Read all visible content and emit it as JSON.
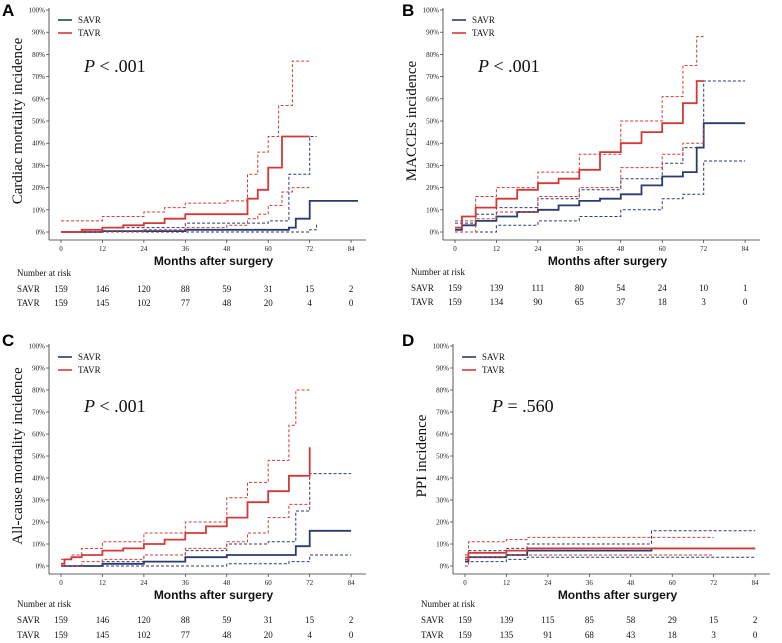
{
  "colors": {
    "savr": "#2c3a6e",
    "tavr": "#d23a3a"
  },
  "legend": {
    "savr": "SAVR",
    "tavr": "TAVR"
  },
  "risk_table_title": "Number at risk",
  "chart_data": [
    {
      "panel": "A",
      "type": "line",
      "title": "",
      "xlabel": "Months after surgery",
      "ylabel": "Cardiac mortality incidence",
      "p_prefix": "P",
      "p_value": "< .001",
      "xlim": [
        0,
        86
      ],
      "ylim": [
        0,
        1
      ],
      "x_ticks": [
        "0",
        "12",
        "24",
        "36",
        "48",
        "60",
        "72",
        "84"
      ],
      "y_ticks": [
        "0%",
        "10%",
        "20%",
        "30%",
        "40%",
        "50%",
        "60%",
        "70%",
        "80%",
        "90%",
        "100%"
      ],
      "series": [
        {
          "name": "SAVR",
          "x": [
            0,
            12,
            36,
            66,
            68,
            72,
            86
          ],
          "y": [
            0,
            0.004,
            0.01,
            0.02,
            0.06,
            0.14,
            0.14
          ],
          "lower": {
            "x": [
              0,
              24,
              66,
              72,
              74
            ],
            "y": [
              0,
              0,
              0,
              0.01,
              0.04
            ]
          },
          "upper": {
            "x": [
              0,
              12,
              36,
              60,
              66,
              72,
              74
            ],
            "y": [
              0,
              0.02,
              0.04,
              0.05,
              0.26,
              0.43,
              0.43
            ]
          }
        },
        {
          "name": "TAVR",
          "x": [
            0,
            6,
            12,
            18,
            24,
            30,
            36,
            48,
            54,
            57,
            60,
            64,
            67,
            72
          ],
          "y": [
            0,
            0.01,
            0.02,
            0.03,
            0.04,
            0.06,
            0.08,
            0.08,
            0.15,
            0.19,
            0.29,
            0.43,
            0.43,
            0.43
          ],
          "lower": {
            "x": [
              0,
              12,
              24,
              36,
              48,
              54,
              57,
              60,
              64,
              67,
              72
            ],
            "y": [
              0,
              0,
              0.01,
              0.02,
              0.03,
              0.06,
              0.08,
              0.12,
              0.18,
              0.2,
              0.2
            ],
            "_": ""
          },
          "upper": {
            "x": [
              0,
              6,
              12,
              24,
              30,
              36,
              48,
              54,
              57,
              60,
              63,
              67,
              72
            ],
            "y": [
              0.05,
              0.05,
              0.07,
              0.09,
              0.11,
              0.13,
              0.14,
              0.26,
              0.36,
              0.43,
              0.57,
              0.77,
              0.77
            ]
          }
        }
      ],
      "risk": {
        "savr": [
          "159",
          "146",
          "120",
          "88",
          "59",
          "31",
          "15",
          "2"
        ],
        "tavr": [
          "159",
          "145",
          "102",
          "77",
          "48",
          "20",
          "4",
          "0"
        ]
      }
    },
    {
      "panel": "B",
      "type": "line",
      "title": "",
      "xlabel": "Months after surgery",
      "ylabel": "MACCEs incidence",
      "p_prefix": "P",
      "p_value": "< .001",
      "xlim": [
        0,
        86
      ],
      "ylim": [
        0,
        1
      ],
      "x_ticks": [
        "0",
        "12",
        "24",
        "36",
        "48",
        "60",
        "72",
        "84"
      ],
      "y_ticks": [
        "0%",
        "10%",
        "20%",
        "30%",
        "40%",
        "50%",
        "60%",
        "70%",
        "80%",
        "90%",
        "100%"
      ],
      "series": [
        {
          "name": "SAVR",
          "x": [
            0,
            2,
            6,
            12,
            18,
            24,
            30,
            36,
            42,
            48,
            54,
            60,
            66,
            70,
            72,
            84
          ],
          "y": [
            0.01,
            0.03,
            0.05,
            0.07,
            0.09,
            0.1,
            0.12,
            0.14,
            0.15,
            0.17,
            0.21,
            0.25,
            0.27,
            0.38,
            0.49,
            0.49
          ],
          "lower": {
            "x": [
              0,
              12,
              24,
              36,
              48,
              60,
              66,
              72,
              84
            ],
            "y": [
              0,
              0.03,
              0.05,
              0.07,
              0.1,
              0.15,
              0.17,
              0.32,
              0.32
            ]
          },
          "upper": {
            "x": [
              0,
              6,
              12,
              24,
              36,
              48,
              60,
              66,
              72,
              84
            ],
            "y": [
              0.04,
              0.08,
              0.11,
              0.15,
              0.19,
              0.24,
              0.31,
              0.38,
              0.68,
              0.68
            ]
          }
        },
        {
          "name": "TAVR",
          "x": [
            0,
            2,
            6,
            12,
            18,
            24,
            30,
            36,
            42,
            48,
            54,
            60,
            66,
            70,
            72
          ],
          "y": [
            0.02,
            0.07,
            0.11,
            0.15,
            0.19,
            0.22,
            0.24,
            0.28,
            0.36,
            0.4,
            0.45,
            0.49,
            0.58,
            0.68,
            0.68
          ],
          "lower": {
            "x": [
              0,
              6,
              12,
              24,
              36,
              48,
              60,
              66,
              72
            ],
            "y": [
              0,
              0.06,
              0.09,
              0.16,
              0.2,
              0.29,
              0.35,
              0.4,
              0.48
            ]
          },
          "upper": {
            "x": [
              0,
              6,
              12,
              24,
              36,
              48,
              60,
              66,
              70,
              72
            ],
            "y": [
              0.05,
              0.16,
              0.2,
              0.27,
              0.35,
              0.5,
              0.61,
              0.75,
              0.88,
              0.88
            ]
          }
        }
      ],
      "risk": {
        "savr": [
          "159",
          "139",
          "111",
          "80",
          "54",
          "24",
          "10",
          "1"
        ],
        "tavr": [
          "159",
          "134",
          "90",
          "65",
          "37",
          "18",
          "3",
          "0"
        ]
      }
    },
    {
      "panel": "C",
      "type": "line",
      "title": "",
      "xlabel": "Months after surgery",
      "ylabel": "All-cause mortality incidence",
      "p_prefix": "P",
      "p_value": "< .001",
      "xlim": [
        0,
        86
      ],
      "ylim": [
        0,
        1
      ],
      "x_ticks": [
        "0",
        "12",
        "24",
        "36",
        "48",
        "60",
        "72",
        "84"
      ],
      "y_ticks": [
        "0%",
        "10%",
        "20%",
        "30%",
        "40%",
        "50%",
        "60%",
        "70%",
        "80%",
        "90%",
        "100%"
      ],
      "series": [
        {
          "name": "SAVR",
          "x": [
            0,
            12,
            24,
            36,
            48,
            60,
            66,
            68,
            72,
            84
          ],
          "y": [
            0,
            0.01,
            0.02,
            0.04,
            0.05,
            0.05,
            0.05,
            0.09,
            0.16,
            0.16
          ],
          "lower": {
            "x": [
              0,
              24,
              48,
              66,
              72,
              84
            ],
            "y": [
              0,
              0,
              0.01,
              0.02,
              0.05,
              0.05
            ]
          },
          "upper": {
            "x": [
              0,
              12,
              24,
              36,
              48,
              60,
              66,
              68,
              72,
              84
            ],
            "y": [
              0,
              0.02,
              0.05,
              0.07,
              0.1,
              0.11,
              0.11,
              0.25,
              0.42,
              0.42
            ]
          }
        },
        {
          "name": "TAVR",
          "x": [
            0,
            1,
            3,
            6,
            12,
            18,
            24,
            30,
            36,
            42,
            48,
            54,
            60,
            66,
            72
          ],
          "y": [
            0.01,
            0.03,
            0.04,
            0.05,
            0.07,
            0.08,
            0.1,
            0.12,
            0.15,
            0.18,
            0.22,
            0.29,
            0.34,
            0.41,
            0.54
          ],
          "lower": {
            "x": [
              0,
              6,
              12,
              24,
              36,
              48,
              54,
              60,
              66,
              72
            ],
            "y": [
              0,
              0.02,
              0.03,
              0.05,
              0.08,
              0.11,
              0.15,
              0.22,
              0.28,
              0.31
            ]
          },
          "upper": {
            "x": [
              0,
              3,
              6,
              12,
              24,
              36,
              48,
              54,
              60,
              66,
              68,
              72
            ],
            "y": [
              0.03,
              0.05,
              0.08,
              0.11,
              0.15,
              0.2,
              0.31,
              0.38,
              0.48,
              0.64,
              0.8,
              0.8
            ]
          }
        }
      ],
      "risk": {
        "savr": [
          "159",
          "146",
          "120",
          "88",
          "59",
          "31",
          "15",
          "2"
        ],
        "tavr": [
          "159",
          "145",
          "102",
          "77",
          "48",
          "20",
          "4",
          "0"
        ]
      }
    },
    {
      "panel": "D",
      "type": "line",
      "title": "",
      "xlabel": "Months after surgery",
      "ylabel": "PPI incidence",
      "p_prefix": "P",
      "p_value": "= .560",
      "xlim": [
        0,
        86
      ],
      "ylim": [
        0,
        1
      ],
      "x_ticks": [
        "0",
        "12",
        "24",
        "36",
        "48",
        "60",
        "72",
        "84"
      ],
      "y_ticks": [
        "0%",
        "10%",
        "20%",
        "30%",
        "40%",
        "50%",
        "60%",
        "70%",
        "80%",
        "90%",
        "100%"
      ],
      "series": [
        {
          "name": "SAVR",
          "x": [
            0,
            1,
            6,
            12,
            18,
            54,
            72,
            84
          ],
          "y": [
            0.02,
            0.04,
            0.04,
            0.05,
            0.07,
            0.08,
            0.08,
            0.08
          ],
          "lower": {
            "x": [
              0,
              1,
              12,
              18,
              54,
              84
            ],
            "y": [
              0,
              0.02,
              0.03,
              0.04,
              0.04,
              0.04
            ]
          },
          "upper": {
            "x": [
              0,
              1,
              12,
              18,
              54,
              84
            ],
            "y": [
              0.04,
              0.07,
              0.08,
              0.1,
              0.16,
              0.16
            ]
          }
        },
        {
          "name": "TAVR",
          "x": [
            0,
            1,
            6,
            12,
            18,
            54,
            72,
            84
          ],
          "y": [
            0.03,
            0.06,
            0.06,
            0.07,
            0.08,
            0.08,
            0.08,
            0.08
          ],
          "lower": {
            "x": [
              0,
              1,
              12,
              18,
              54,
              72
            ],
            "y": [
              0,
              0.04,
              0.05,
              0.05,
              0.05,
              0.05
            ]
          },
          "upper": {
            "x": [
              0,
              1,
              12,
              18,
              54,
              72
            ],
            "y": [
              0.05,
              0.11,
              0.12,
              0.13,
              0.13,
              0.13
            ]
          }
        }
      ],
      "risk": {
        "savr": [
          "159",
          "139",
          "115",
          "85",
          "58",
          "29",
          "15",
          "2"
        ],
        "tavr": [
          "159",
          "135",
          "91",
          "68",
          "43",
          "18",
          "3",
          "0"
        ]
      }
    }
  ]
}
